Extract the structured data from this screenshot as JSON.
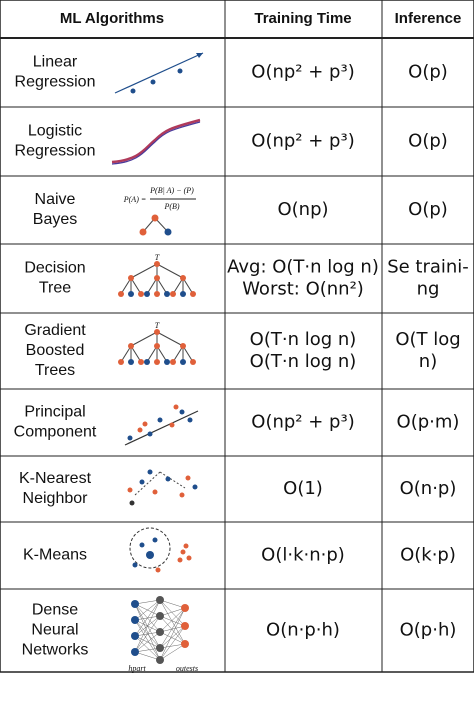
{
  "header": {
    "algorithms": "ML Algorithms",
    "training": "Training Time",
    "inference": "Inference"
  },
  "rows": [
    {
      "name": [
        "Linear",
        "Regression"
      ],
      "training": [
        "O(np² + p³)"
      ],
      "inference": [
        "O(p)"
      ]
    },
    {
      "name": [
        "Logistic",
        "Regression"
      ],
      "training": [
        "O(np² + p³)"
      ],
      "inference": [
        "O(p)"
      ]
    },
    {
      "name": [
        "Naive",
        "Bayes"
      ],
      "training": [
        "O(np)"
      ],
      "inference": [
        "O(p)"
      ],
      "labels": [
        "P(A) =",
        "P(B| A) − (P)",
        "P(B)"
      ]
    },
    {
      "name": [
        "Decision",
        "Tree"
      ],
      "training": [
        "Avg: O(T·n log n)",
        "Worst: O(nn²)"
      ],
      "inference": [
        "Se traini-",
        "ng"
      ],
      "labels": [
        "T"
      ]
    },
    {
      "name": [
        "Gradient",
        "Boosted",
        "Trees"
      ],
      "training": [
        "O(T·n log n)",
        "O(T·n log n)"
      ],
      "inference": [
        "O(T log",
        "n)"
      ],
      "labels": [
        "T"
      ]
    },
    {
      "name": [
        "Principal",
        "Component"
      ],
      "training": [
        "O(np² + p³)"
      ],
      "inference": [
        "O(p·m)"
      ]
    },
    {
      "name": [
        "K-Nearest",
        "Neighbor"
      ],
      "training": [
        "O(1)"
      ],
      "inference": [
        "O(n·p)"
      ]
    },
    {
      "name": [
        "K-Means"
      ],
      "training": [
        "O(l·k·n·p)"
      ],
      "inference": [
        "O(k·p)"
      ]
    },
    {
      "name": [
        "Dense",
        "Neural",
        "Networks"
      ],
      "training": [
        "O(n·p·h)"
      ],
      "inference": [
        "O(p·h)"
      ],
      "labels": [
        "hpart",
        "outests"
      ]
    }
  ]
}
